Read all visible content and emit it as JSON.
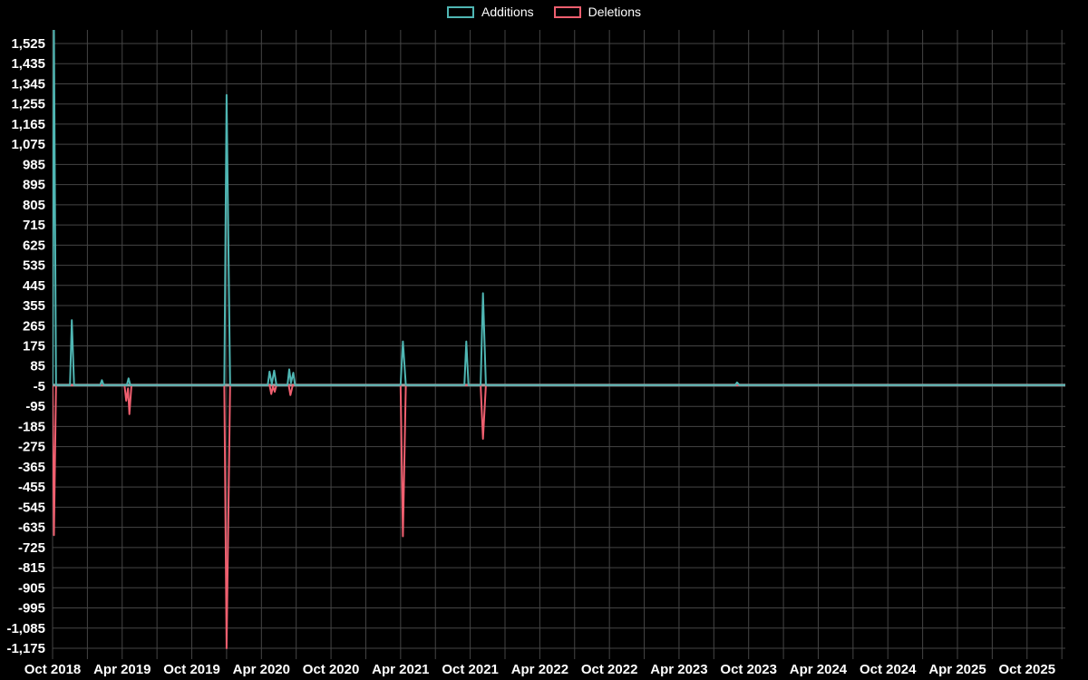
{
  "legend": {
    "items": [
      "Additions",
      "Deletions"
    ]
  },
  "chart_data": {
    "type": "line",
    "title": "",
    "background": "#000000",
    "grid_color": "#454545",
    "text_color": "#ffffff",
    "x_axis": {
      "labels": [
        "Oct 2018",
        "Apr 2019",
        "Oct 2019",
        "Apr 2020",
        "Oct 2020",
        "Apr 2021",
        "Oct 2021",
        "Apr 2022",
        "Oct 2022",
        "Apr 2023",
        "Oct 2023",
        "Apr 2024",
        "Oct 2024",
        "Apr 2025",
        "Oct 2025"
      ],
      "label_every_months": 6,
      "gridline_every_months": 3,
      "range_months": [
        0,
        87.3
      ]
    },
    "y_axis": {
      "tick_values": [
        1525,
        1435,
        1345,
        1255,
        1165,
        1075,
        985,
        895,
        805,
        715,
        625,
        535,
        445,
        355,
        265,
        175,
        85,
        -5,
        -95,
        -185,
        -275,
        -365,
        -455,
        -545,
        -635,
        -725,
        -815,
        -905,
        -995,
        -1085,
        -1175
      ],
      "tick_step": 90,
      "range": [
        -1175,
        1525
      ],
      "zero_line_color": "#a0a0a0"
    },
    "series": [
      {
        "name": "Additions",
        "color": "#4fb6b3",
        "points": [
          [
            0,
            0
          ],
          [
            0.12,
            1590
          ],
          [
            0.3,
            0
          ],
          [
            1.5,
            0
          ],
          [
            1.66,
            290
          ],
          [
            1.85,
            0
          ],
          [
            4.1,
            0
          ],
          [
            4.25,
            22
          ],
          [
            4.4,
            0
          ],
          [
            6.4,
            0
          ],
          [
            6.55,
            30
          ],
          [
            6.7,
            0
          ],
          [
            14.8,
            0
          ],
          [
            15,
            1295
          ],
          [
            15.3,
            0
          ],
          [
            18.55,
            0
          ],
          [
            18.7,
            60
          ],
          [
            18.9,
            5
          ],
          [
            19.1,
            65
          ],
          [
            19.3,
            0
          ],
          [
            20.25,
            0
          ],
          [
            20.4,
            70
          ],
          [
            20.55,
            10
          ],
          [
            20.75,
            55
          ],
          [
            20.9,
            0
          ],
          [
            30,
            0
          ],
          [
            30.2,
            195
          ],
          [
            30.45,
            0
          ],
          [
            35.5,
            0
          ],
          [
            35.66,
            195
          ],
          [
            35.85,
            0
          ],
          [
            36.9,
            0
          ],
          [
            37.1,
            410
          ],
          [
            37.35,
            0
          ],
          [
            58.85,
            0
          ],
          [
            59,
            12
          ],
          [
            59.2,
            0
          ],
          [
            87.3,
            0
          ]
        ]
      },
      {
        "name": "Deletions",
        "color": "#ef5f6f",
        "points": [
          [
            0,
            0
          ],
          [
            0.12,
            -670
          ],
          [
            0.3,
            0
          ],
          [
            6.2,
            0
          ],
          [
            6.35,
            -70
          ],
          [
            6.5,
            -15
          ],
          [
            6.62,
            -130
          ],
          [
            6.8,
            0
          ],
          [
            14.8,
            0
          ],
          [
            15,
            -1175
          ],
          [
            15.3,
            0
          ],
          [
            18.7,
            0
          ],
          [
            18.85,
            -40
          ],
          [
            19,
            -5
          ],
          [
            19.15,
            -30
          ],
          [
            19.3,
            0
          ],
          [
            20.35,
            0
          ],
          [
            20.5,
            -45
          ],
          [
            20.7,
            0
          ],
          [
            30,
            0
          ],
          [
            30.2,
            -675
          ],
          [
            30.45,
            0
          ],
          [
            36.9,
            0
          ],
          [
            37.1,
            -240
          ],
          [
            37.35,
            0
          ],
          [
            87.3,
            0
          ]
        ]
      }
    ]
  }
}
